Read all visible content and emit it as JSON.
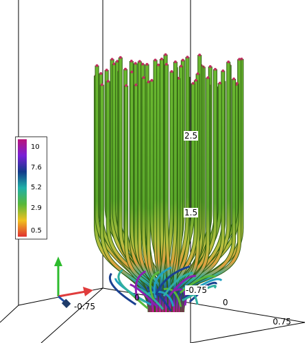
{
  "colorbar": {
    "labels": [
      "10",
      "7.6",
      "5.2",
      "2.9",
      "0.5"
    ],
    "colors": [
      "#b8157a",
      "#7a1fd6",
      "#123a8a",
      "#20b0a8",
      "#58b83a",
      "#f0c020",
      "#e03030"
    ]
  },
  "axes": {
    "z_ticks": [
      "2.5",
      "1.5"
    ],
    "x_ticks": [
      "-0.75",
      "0"
    ],
    "y_ticks": [
      "-0.75",
      "0",
      "0.75"
    ]
  },
  "orientation_widget": {
    "x_color": "#e03c3c",
    "y_color": "#1f4fa8",
    "z_color": "#2dbb2d"
  }
}
